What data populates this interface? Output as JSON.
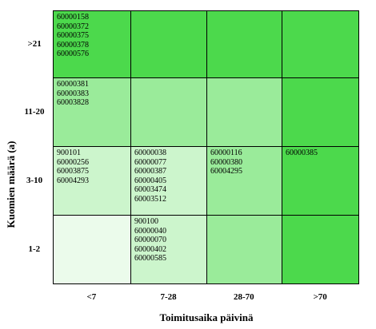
{
  "chart_data": {
    "type": "heatmap",
    "xlabel": "Toimitusaika päivinä",
    "ylabel": "Kuomien määrä (a)",
    "x_categories": [
      "<7",
      "7-28",
      "28-70",
      ">70"
    ],
    "y_categories": [
      ">21",
      "11-20",
      "3-10",
      "1-2"
    ],
    "cells": [
      {
        "row": ">21",
        "col": "<7",
        "color": "#4cd94c",
        "items": [
          "60000158",
          "60000372",
          "60000375",
          "60000378",
          "60000576"
        ]
      },
      {
        "row": ">21",
        "col": "7-28",
        "color": "#4cd94c",
        "items": []
      },
      {
        "row": ">21",
        "col": "28-70",
        "color": "#4cd94c",
        "items": []
      },
      {
        "row": ">21",
        "col": ">70",
        "color": "#4cd94c",
        "items": []
      },
      {
        "row": "11-20",
        "col": "<7",
        "color": "#9aeb9a",
        "items": [
          "60000381",
          "60000383",
          "60003828"
        ]
      },
      {
        "row": "11-20",
        "col": "7-28",
        "color": "#9aeb9a",
        "items": []
      },
      {
        "row": "11-20",
        "col": "28-70",
        "color": "#9aeb9a",
        "items": []
      },
      {
        "row": "11-20",
        "col": ">70",
        "color": "#4cd94c",
        "items": []
      },
      {
        "row": "3-10",
        "col": "<7",
        "color": "#ccf5cc",
        "items": [
          "900101",
          "60000256",
          "60003875",
          "60004293"
        ]
      },
      {
        "row": "3-10",
        "col": "7-28",
        "color": "#ccf5cc",
        "items": [
          "60000038",
          "60000077",
          "60000387",
          "60000405",
          "60003474",
          "60003512"
        ]
      },
      {
        "row": "3-10",
        "col": "28-70",
        "color": "#9aeb9a",
        "items": [
          "60000116",
          "60000380",
          "60004295"
        ]
      },
      {
        "row": "3-10",
        "col": ">70",
        "color": "#4cd94c",
        "items": [
          "60000385"
        ]
      },
      {
        "row": "1-2",
        "col": "<7",
        "color": "#ebfbeb",
        "items": []
      },
      {
        "row": "1-2",
        "col": "7-28",
        "color": "#ccf5cc",
        "items": [
          "900100",
          "60000040",
          "60000070",
          "60000402",
          "60000585"
        ]
      },
      {
        "row": "1-2",
        "col": "28-70",
        "color": "#9aeb9a",
        "items": []
      },
      {
        "row": "1-2",
        "col": ">70",
        "color": "#4cd94c",
        "items": []
      }
    ]
  }
}
